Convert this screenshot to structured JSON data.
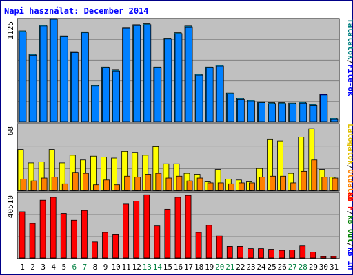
{
  "title": "Napi használat: December 2014",
  "colors": {
    "background": "#ffffff",
    "frame": "#000088",
    "title": "#0000ff",
    "plot_bg": "#c0c0c0",
    "grid": "#808080",
    "border": "#000000",
    "weekday_label": "#000000",
    "weekend_label": "#008040",
    "hits": "#00c0ff",
    "hits_last": "#0000ff",
    "files": "#0080ff",
    "pages": "#ff8000",
    "visits": "#ffff00",
    "kb": "#ff0000",
    "label_blue": "#0000ff",
    "label_teal": "#008080",
    "label_yellow": "#e0c000",
    "label_orange": "#ff8000",
    "label_green": "#008000",
    "label_red": "#ff0000",
    "label_gray": "#000000"
  },
  "chart_data": [
    {
      "type": "bar",
      "panel": "top",
      "axis_max_label": "1125",
      "ylim": [
        0,
        1125
      ],
      "categories": [
        "1",
        "2",
        "3",
        "4",
        "5",
        "6",
        "7",
        "8",
        "9",
        "10",
        "11",
        "12",
        "13",
        "14",
        "15",
        "16",
        "17",
        "18",
        "19",
        "20",
        "21",
        "22",
        "23",
        "24",
        "25",
        "26",
        "27",
        "28",
        "29",
        "30",
        "31"
      ],
      "weekend_days": [
        "6",
        "7",
        "13",
        "14",
        "20",
        "21",
        "27",
        "28"
      ],
      "series": [
        {
          "name": "Találatok",
          "values": [
            1010,
            750,
            1075,
            1150,
            955,
            780,
            1000,
            410,
            610,
            575,
            1050,
            1080,
            1090,
            610,
            930,
            990,
            1065,
            530,
            610,
            630,
            320,
            260,
            240,
            220,
            210,
            210,
            205,
            215,
            190,
            310,
            40
          ]
        },
        {
          "name": "File-ok",
          "values": [
            1000,
            740,
            1065,
            1140,
            945,
            770,
            990,
            400,
            600,
            565,
            1040,
            1070,
            1080,
            600,
            920,
            980,
            1055,
            520,
            600,
            620,
            310,
            250,
            230,
            210,
            200,
            200,
            195,
            205,
            180,
            300,
            30
          ]
        }
      ],
      "legend": [
        {
          "text": "Találatok",
          "color_key": "label_teal"
        },
        {
          "text": "/",
          "color_key": "label_gray"
        },
        {
          "text": "File-ok",
          "color_key": "label_blue"
        }
      ]
    },
    {
      "type": "bar",
      "panel": "middle",
      "axis_max_label": "68",
      "ylim": [
        0,
        68
      ],
      "categories": [
        "1",
        "2",
        "3",
        "4",
        "5",
        "6",
        "7",
        "8",
        "9",
        "10",
        "11",
        "12",
        "13",
        "14",
        "15",
        "16",
        "17",
        "18",
        "19",
        "20",
        "21",
        "22",
        "23",
        "24",
        "25",
        "26",
        "27",
        "28",
        "29",
        "30",
        "31"
      ],
      "series": [
        {
          "name": "Látogatók",
          "values": [
            43,
            29,
            30,
            43,
            29,
            37,
            32,
            36,
            35,
            34,
            41,
            40,
            37,
            46,
            28,
            28,
            18,
            17,
            9,
            22,
            12,
            11,
            9,
            23,
            54,
            52,
            18,
            56,
            65,
            22,
            14
          ]
        },
        {
          "name": "Oldalak",
          "values": [
            12,
            10,
            13,
            14,
            7,
            19,
            18,
            6,
            11,
            6,
            15,
            14,
            17,
            18,
            13,
            15,
            10,
            13,
            8,
            8,
            7,
            8,
            8,
            14,
            15,
            15,
            8,
            20,
            32,
            14,
            13
          ]
        }
      ],
      "legend": [
        {
          "text": "Látogatók",
          "color_key": "label_yellow"
        },
        {
          "text": "/",
          "color_key": "label_gray"
        },
        {
          "text": "Oldalak",
          "color_key": "label_orange"
        }
      ]
    },
    {
      "type": "bar",
      "panel": "bottom",
      "axis_max_label": "40510",
      "ylim": [
        0,
        40510
      ],
      "categories": [
        "1",
        "2",
        "3",
        "4",
        "5",
        "6",
        "7",
        "8",
        "9",
        "10",
        "11",
        "12",
        "13",
        "14",
        "15",
        "16",
        "17",
        "18",
        "19",
        "20",
        "21",
        "22",
        "23",
        "24",
        "25",
        "26",
        "27",
        "28",
        "29",
        "30",
        "31"
      ],
      "series": [
        {
          "name": "kB F",
          "values": [
            29500,
            22000,
            36900,
            38800,
            28400,
            24100,
            30300,
            10200,
            16300,
            14800,
            34400,
            36300,
            40400,
            20400,
            31100,
            38800,
            40000,
            16300,
            20800,
            14000,
            7300,
            7300,
            5900,
            5900,
            5500,
            4800,
            5100,
            7600,
            3700,
            800,
            900
          ]
        }
      ],
      "legend": [
        {
          "text": "kB F",
          "color_key": "label_red"
        },
        {
          "text": "/",
          "color_key": "label_gray"
        },
        {
          "text": "kB Out",
          "color_key": "label_green"
        },
        {
          "text": "/",
          "color_key": "label_gray"
        },
        {
          "text": "kB In",
          "color_key": "label_blue"
        }
      ]
    }
  ]
}
